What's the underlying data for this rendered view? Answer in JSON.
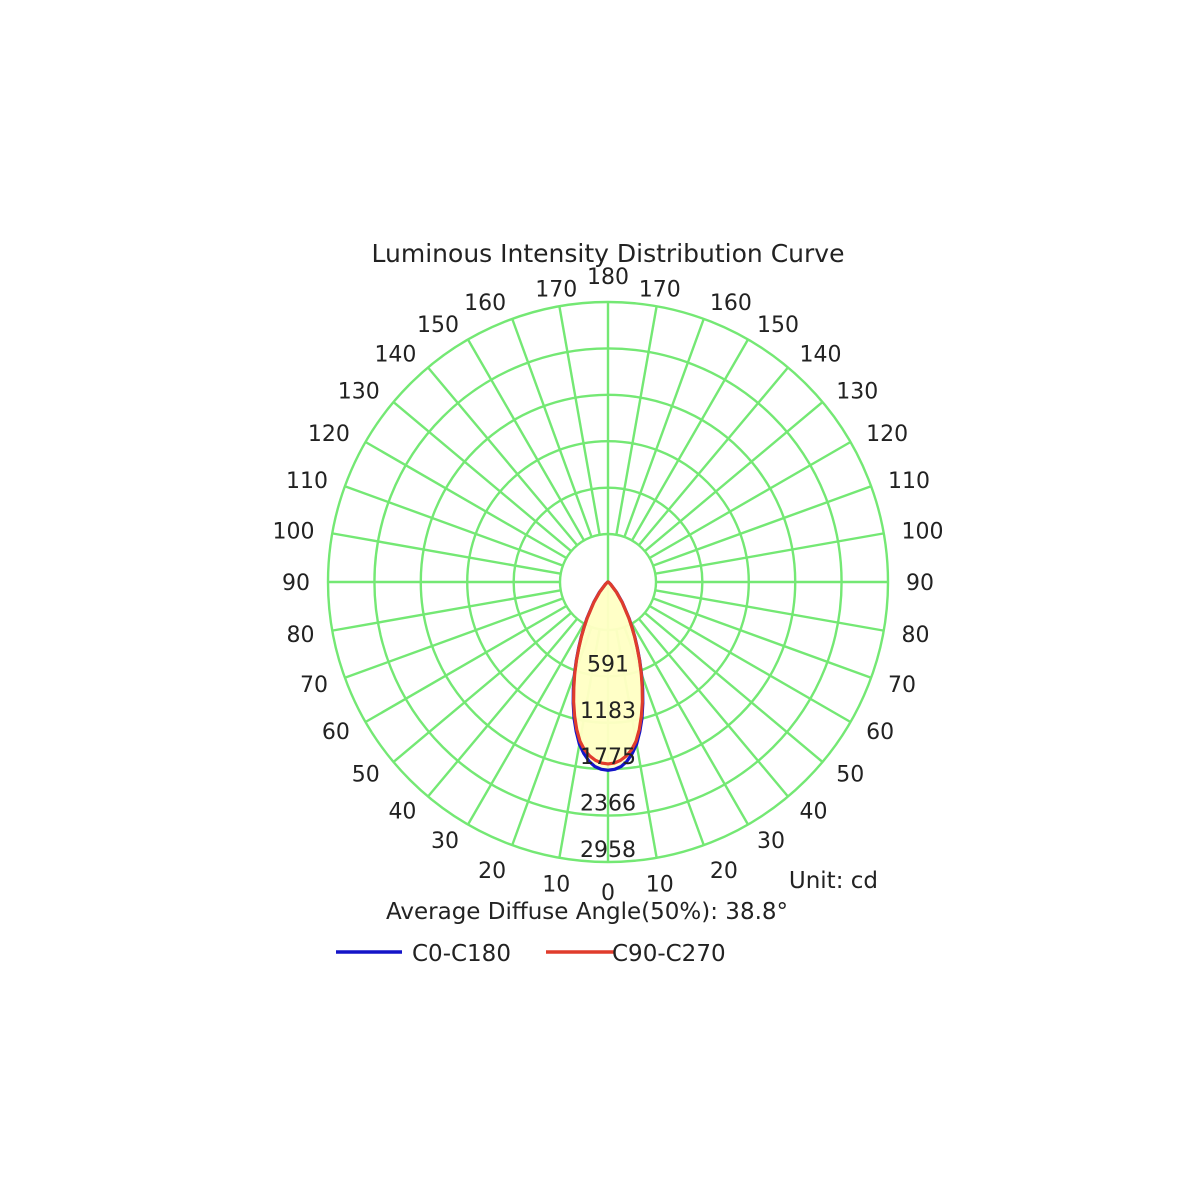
{
  "chart_data": {
    "type": "polar",
    "title": "Luminous Intensity Distribution Curve",
    "unit_label": "Unit: cd",
    "footnote": "Average Diffuse Angle(50%): 38.8°",
    "radial_max": 2958,
    "radial_ticks": [
      591,
      1183,
      1775,
      2366,
      2958
    ],
    "angle_labels_left": [
      {
        "angle": 0,
        "label": "0"
      },
      {
        "angle": 10,
        "label": "10"
      },
      {
        "angle": 20,
        "label": "20"
      },
      {
        "angle": 30,
        "label": "30"
      },
      {
        "angle": 40,
        "label": "40"
      },
      {
        "angle": 50,
        "label": "50"
      },
      {
        "angle": 60,
        "label": "60"
      },
      {
        "angle": 70,
        "label": "70"
      },
      {
        "angle": 80,
        "label": "80"
      },
      {
        "angle": 90,
        "label": "90"
      },
      {
        "angle": 100,
        "label": "100"
      },
      {
        "angle": 110,
        "label": "110"
      },
      {
        "angle": 120,
        "label": "120"
      },
      {
        "angle": 130,
        "label": "130"
      },
      {
        "angle": 140,
        "label": "140"
      },
      {
        "angle": 150,
        "label": "150"
      },
      {
        "angle": 160,
        "label": "160"
      },
      {
        "angle": 170,
        "label": "170"
      },
      {
        "angle": 180,
        "label": "180"
      }
    ],
    "angle_labels_right": [
      {
        "angle": 10,
        "label": "10"
      },
      {
        "angle": 20,
        "label": "20"
      },
      {
        "angle": 30,
        "label": "30"
      },
      {
        "angle": 40,
        "label": "40"
      },
      {
        "angle": 50,
        "label": "50"
      },
      {
        "angle": 60,
        "label": "60"
      },
      {
        "angle": 70,
        "label": "70"
      },
      {
        "angle": 80,
        "label": "80"
      },
      {
        "angle": 90,
        "label": "90"
      },
      {
        "angle": 100,
        "label": "100"
      },
      {
        "angle": 110,
        "label": "110"
      },
      {
        "angle": 120,
        "label": "120"
      },
      {
        "angle": 130,
        "label": "130"
      },
      {
        "angle": 140,
        "label": "140"
      },
      {
        "angle": 150,
        "label": "150"
      },
      {
        "angle": 160,
        "label": "160"
      },
      {
        "angle": 170,
        "label": "170"
      }
    ],
    "angles": [
      0,
      2,
      4,
      6,
      8,
      10,
      12,
      14,
      16,
      18,
      20,
      22,
      24,
      26,
      28,
      30,
      35,
      40,
      50,
      60,
      70,
      80,
      90
    ],
    "series": [
      {
        "name": "C0-C180",
        "color": "#1414c8",
        "values": [
          2400,
          2390,
          2360,
          2300,
          2210,
          2100,
          1950,
          1790,
          1610,
          1430,
          1250,
          1080,
          920,
          780,
          650,
          540,
          320,
          170,
          40,
          10,
          5,
          2,
          0
        ]
      },
      {
        "name": "C90-C270",
        "color": "#e03c2c",
        "values": [
          2320,
          2310,
          2280,
          2230,
          2160,
          2060,
          1920,
          1760,
          1590,
          1410,
          1240,
          1070,
          910,
          770,
          640,
          530,
          310,
          160,
          40,
          10,
          5,
          2,
          0
        ]
      }
    ],
    "colors": {
      "grid": "#74e874",
      "fill": "#ffffc4",
      "text": "#222222"
    },
    "legend_position": "bottom"
  }
}
